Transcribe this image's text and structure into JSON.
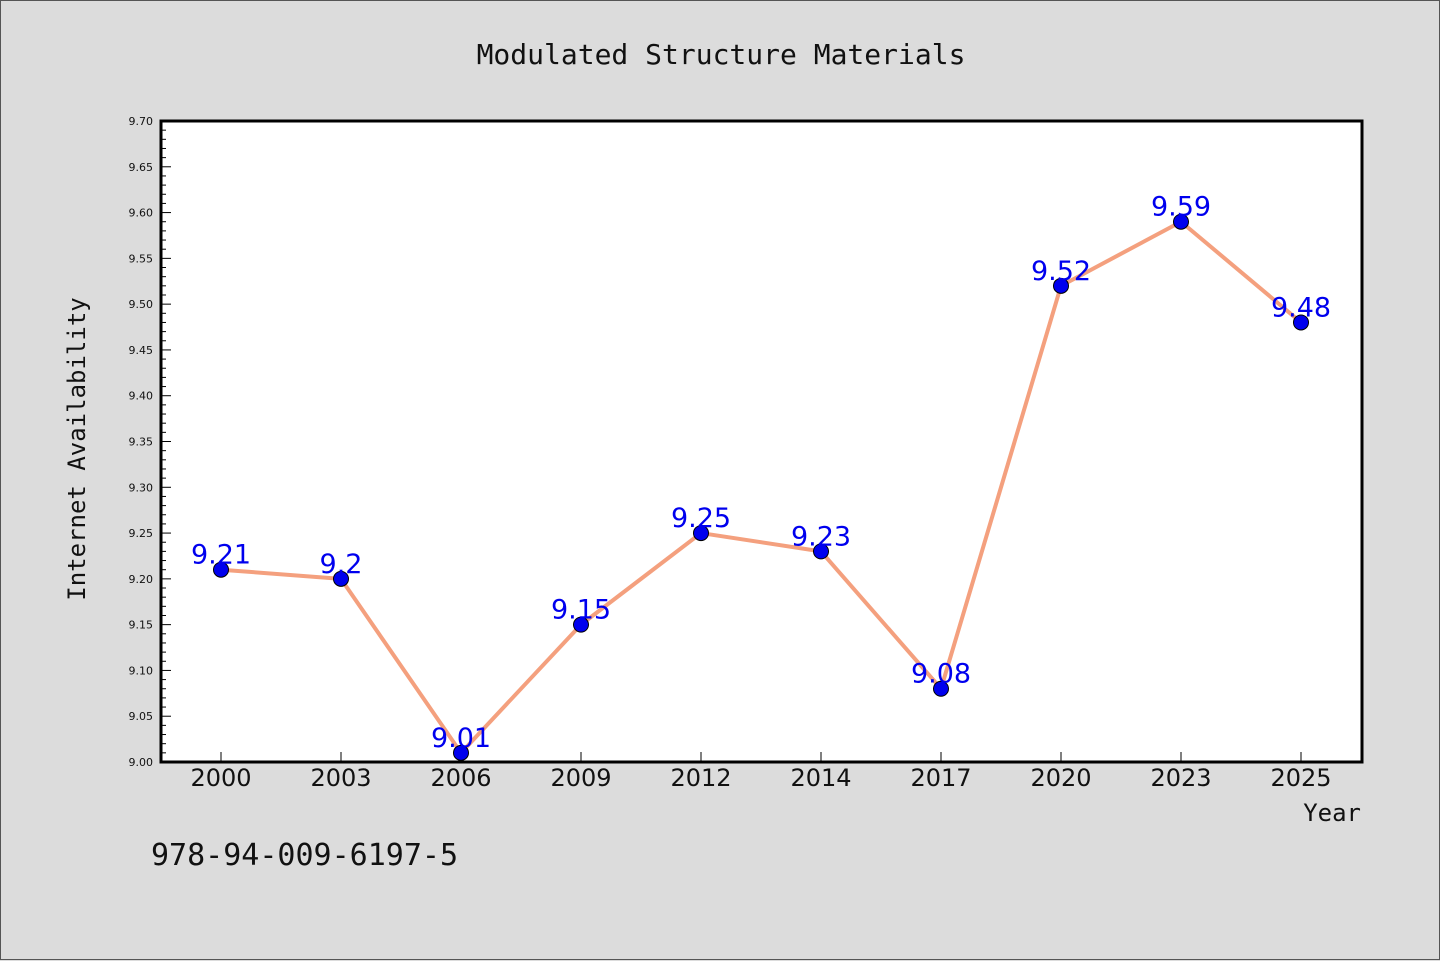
{
  "chart_data": {
    "type": "line",
    "title": "Modulated Structure Materials",
    "xlabel": "Year",
    "ylabel": "Internet Availability",
    "categories": [
      "2000",
      "2003",
      "2006",
      "2009",
      "2012",
      "2014",
      "2017",
      "2020",
      "2023",
      "2025"
    ],
    "values": [
      9.21,
      9.2,
      9.01,
      9.15,
      9.25,
      9.23,
      9.08,
      9.52,
      9.59,
      9.48
    ],
    "data_labels": [
      "9.21",
      "9.2",
      "9.01",
      "9.15",
      "9.25",
      "9.23",
      "9.08",
      "9.52",
      "9.59",
      "9.48"
    ],
    "ylim": [
      9.0,
      9.7
    ],
    "yticks": [
      "9.00",
      "9.05",
      "9.10",
      "9.15",
      "9.20",
      "9.25",
      "9.30",
      "9.35",
      "9.40",
      "9.45",
      "9.50",
      "9.55",
      "9.60",
      "9.65",
      "9.70"
    ],
    "grid": false,
    "legend": "none",
    "colors": {
      "line": "#f4a07e",
      "marker": "#0000ee",
      "data_label": "#0000ee",
      "plot_background": "#ffffff",
      "figure_background": "#dcdcdc"
    }
  },
  "footnote": "978-94-009-6197-5"
}
